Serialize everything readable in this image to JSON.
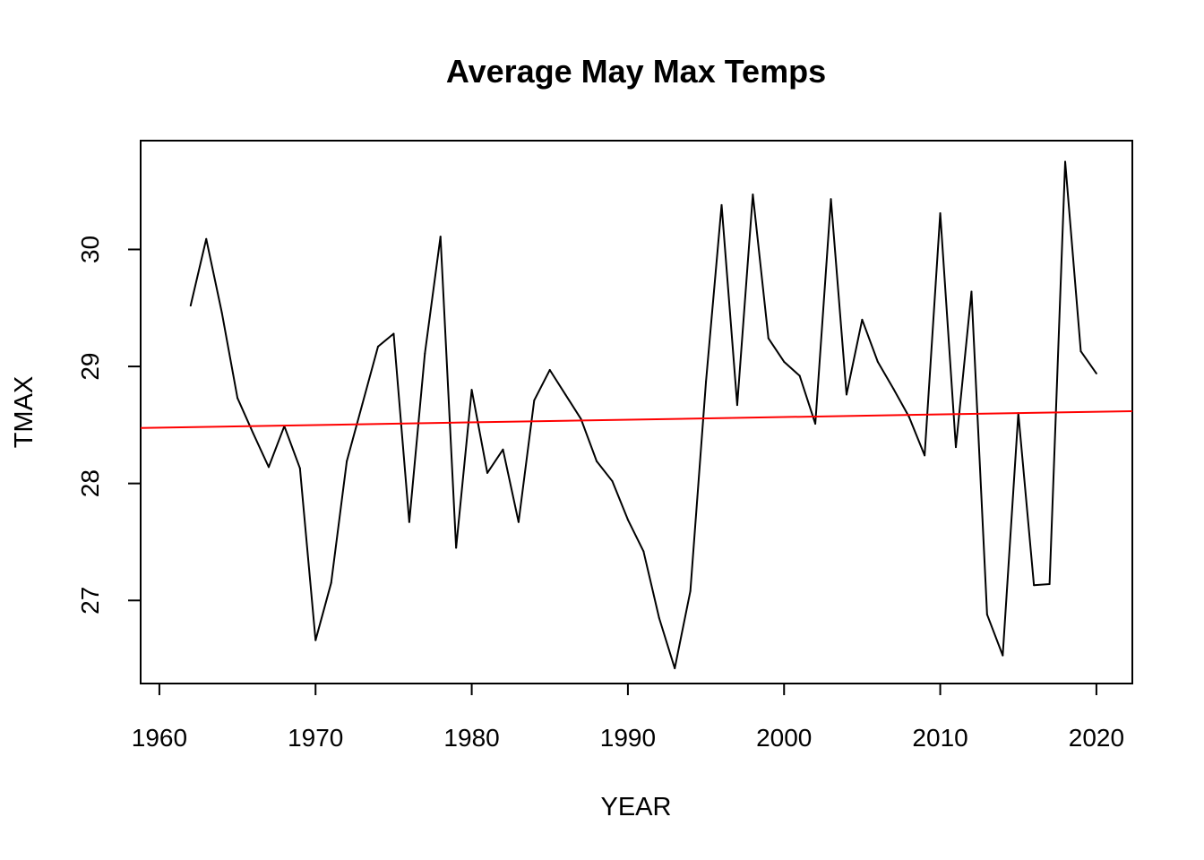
{
  "chart_data": {
    "type": "line",
    "title": "Average May Max Temps",
    "xlabel": "YEAR",
    "ylabel": "TMAX",
    "xlim": [
      1958.8,
      2022.3
    ],
    "ylim": [
      26.29,
      30.93
    ],
    "x_ticks": [
      1960,
      1970,
      1980,
      1990,
      2000,
      2010,
      2020
    ],
    "x_tick_labels": [
      "1960",
      "1970",
      "1980",
      "1990",
      "2000",
      "2010",
      "2020"
    ],
    "y_ticks": [
      27,
      28,
      29,
      30
    ],
    "y_tick_labels": [
      "27",
      "28",
      "29",
      "30"
    ],
    "grid": false,
    "legend": "none",
    "series": [
      {
        "color": "#000000",
        "x": [
          1962,
          1963,
          1964,
          1965,
          1966,
          1967,
          1968,
          1969,
          1970,
          1971,
          1972,
          1973,
          1974,
          1975,
          1976,
          1977,
          1978,
          1979,
          1980,
          1981,
          1982,
          1983,
          1984,
          1985,
          1986,
          1987,
          1988,
          1989,
          1990,
          1991,
          1992,
          1993,
          1994,
          1995,
          1996,
          1997,
          1998,
          1999,
          2000,
          2001,
          2002,
          2003,
          2004,
          2005,
          2006,
          2007,
          2008,
          2009,
          2010,
          2011,
          2012,
          2013,
          2014,
          2015,
          2016,
          2017,
          2018,
          2019,
          2020
        ],
        "values": [
          29.52,
          30.09,
          29.46,
          28.73,
          28.43,
          28.14,
          28.49,
          28.13,
          26.66,
          27.15,
          28.19,
          28.68,
          29.17,
          29.28,
          27.67,
          29.11,
          30.11,
          27.45,
          28.8,
          28.09,
          28.29,
          27.67,
          28.71,
          28.97,
          28.76,
          28.55,
          28.19,
          28.02,
          27.69,
          27.42,
          26.85,
          26.42,
          27.08,
          28.87,
          30.38,
          28.67,
          30.47,
          29.24,
          29.04,
          28.92,
          28.51,
          30.43,
          28.76,
          29.4,
          29.04,
          28.81,
          28.57,
          28.24,
          30.31,
          28.31,
          29.64,
          26.88,
          26.53,
          28.6,
          27.13,
          27.14,
          30.75,
          29.13,
          28.94
        ]
      },
      {
        "color": "#ff0000",
        "x": [
          1958.8,
          2022.3
        ],
        "values": [
          28.474,
          28.618
        ]
      }
    ]
  }
}
